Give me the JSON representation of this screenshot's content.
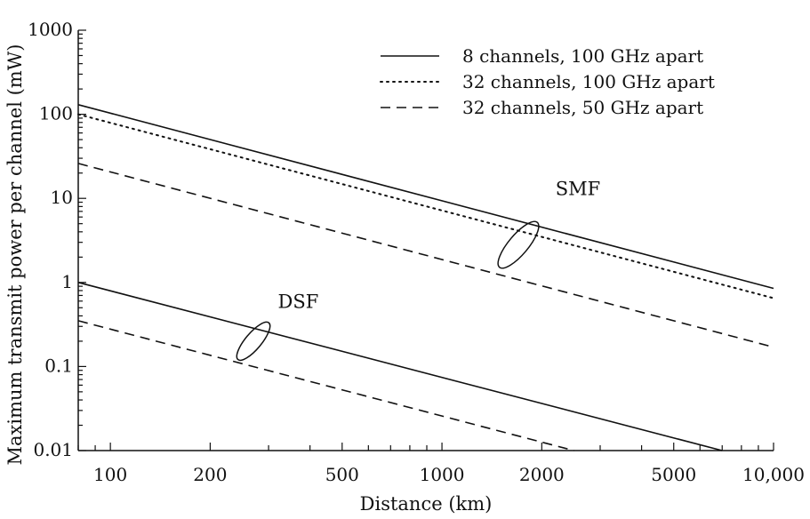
{
  "chart_data": {
    "type": "line",
    "xlabel": "Distance (km)",
    "ylabel": "Maximum transmit power per channel (mW)",
    "x_scale": "log",
    "y_scale": "log",
    "xlim": [
      80,
      10000
    ],
    "ylim": [
      0.01,
      1000
    ],
    "grid": false,
    "legend_position": "top-right",
    "x_tick_labels": [
      "100",
      "200",
      "500",
      "1000",
      "2000",
      "5000",
      "10,000"
    ],
    "x_tick_values": [
      100,
      200,
      500,
      1000,
      2000,
      5000,
      10000
    ],
    "y_tick_labels": [
      "0.01",
      "0.1",
      "1",
      "10",
      "100",
      "1000"
    ],
    "y_tick_values": [
      0.01,
      0.1,
      1,
      10,
      100,
      1000
    ],
    "legend": [
      {
        "label": "8 channels, 100 GHz apart",
        "style": "solid"
      },
      {
        "label": "32 channels, 100 GHz apart",
        "style": "dotted"
      },
      {
        "label": "32 channels, 50 GHz apart",
        "style": "dashed"
      }
    ],
    "series": [
      {
        "group": "SMF",
        "style": "solid",
        "x": [
          80,
          10000
        ],
        "y": [
          130,
          0.85
        ]
      },
      {
        "group": "SMF",
        "style": "dotted",
        "x": [
          80,
          10000
        ],
        "y": [
          100,
          0.65
        ]
      },
      {
        "group": "SMF",
        "style": "dashed",
        "x": [
          80,
          10000
        ],
        "y": [
          26,
          0.17
        ]
      },
      {
        "group": "DSF",
        "style": "solid",
        "x": [
          80,
          7000
        ],
        "y": [
          1.0,
          0.01
        ]
      },
      {
        "group": "DSF",
        "style": "dashed",
        "x": [
          80,
          2500
        ],
        "y": [
          0.35,
          0.01
        ]
      }
    ],
    "annotations": [
      {
        "text": "SMF",
        "x": 2200,
        "y": 11
      },
      {
        "text": "DSF",
        "x": 320,
        "y": 0.5
      }
    ]
  }
}
